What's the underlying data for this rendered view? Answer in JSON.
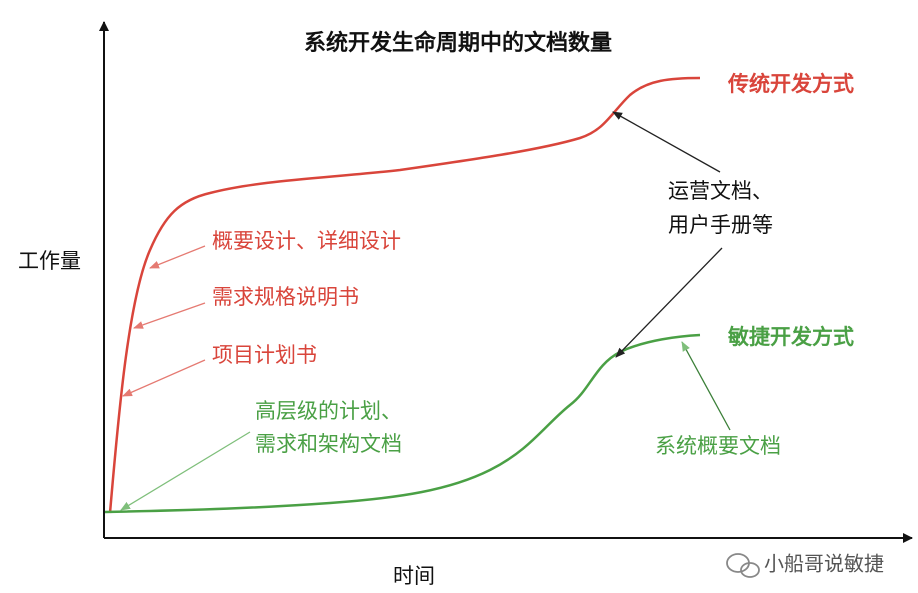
{
  "title": "系统开发生命周期中的文档数量",
  "axes": {
    "y_label": "工作量",
    "x_label": "时间"
  },
  "curves": [
    {
      "label": "传统开发方式"
    },
    {
      "label": "敏捷开发方式"
    }
  ],
  "annotations": [
    {
      "lines": [
        "概要设计、详细设计"
      ]
    },
    {
      "lines": [
        "需求规格说明书"
      ]
    },
    {
      "lines": [
        "项目计划书"
      ]
    },
    {
      "lines": [
        "高层级的计划、",
        "需求和架构文档"
      ]
    },
    {
      "lines": [
        "运营文档、",
        "用户手册等"
      ]
    },
    {
      "lines": [
        "系统概要文档"
      ]
    }
  ],
  "watermark": "小船哥说敏捷"
}
